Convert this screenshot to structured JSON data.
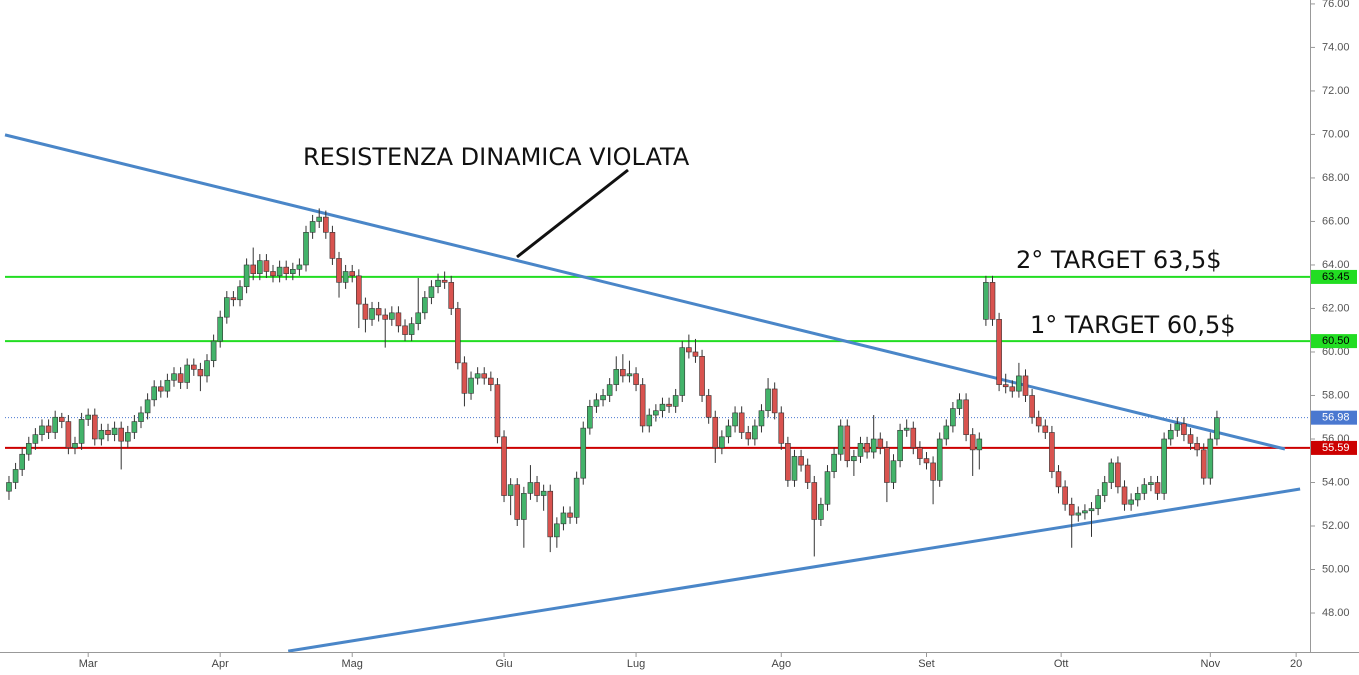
{
  "chart_data": {
    "type": "candlestick",
    "up_color": "#43b36a",
    "down_color": "#d9534f",
    "outline_color": "#333333",
    "xlim": [
      -1.36,
      197.1
    ],
    "ylim": [
      46.3,
      76.18
    ],
    "xticks": [
      {
        "value": 12,
        "label": "Mar"
      },
      {
        "value": 32,
        "label": "Apr"
      },
      {
        "value": 52,
        "label": "Mag"
      },
      {
        "value": 75,
        "label": "Giu"
      },
      {
        "value": 95,
        "label": "Lug"
      },
      {
        "value": 117,
        "label": "Ago"
      },
      {
        "value": 139,
        "label": "Set"
      },
      {
        "value": 159.4,
        "label": "Ott"
      },
      {
        "value": 182,
        "label": "Nov"
      },
      {
        "value": 195,
        "label": "20"
      }
    ],
    "yticks": [
      {
        "value": 48,
        "label": "48.00"
      },
      {
        "value": 50,
        "label": "50.00"
      },
      {
        "value": 52,
        "label": "52.00"
      },
      {
        "value": 54,
        "label": "54.00"
      },
      {
        "value": 56,
        "label": "56.00"
      },
      {
        "value": 58,
        "label": "58.00"
      },
      {
        "value": 60,
        "label": "60.00"
      },
      {
        "value": 62,
        "label": "62.00"
      },
      {
        "value": 64,
        "label": "64.00"
      },
      {
        "value": 66,
        "label": "66.00"
      },
      {
        "value": 68,
        "label": "68.00"
      },
      {
        "value": 70,
        "label": "70.00"
      },
      {
        "value": 72,
        "label": "72.00"
      },
      {
        "value": 74,
        "label": "74.00"
      },
      {
        "value": 76,
        "label": "76.00"
      }
    ],
    "levels": [
      {
        "value": 63.45,
        "label": "63.45",
        "color": "#22dd22",
        "style": "solid"
      },
      {
        "value": 60.5,
        "label": "60.50",
        "color": "#22dd22",
        "style": "solid"
      },
      {
        "value": 56.98,
        "label": "56.98",
        "color": "#4a78d0",
        "style": "dotted"
      },
      {
        "value": 55.59,
        "label": "55.59",
        "color": "#cc0000",
        "style": "solid"
      }
    ],
    "trendlines": [
      {
        "color": "#4a86c8",
        "x": [
          -0.6,
          193.3
        ],
        "y": [
          69.98,
          55.54
        ]
      },
      {
        "color": "#4a86c8",
        "x": [
          42.3,
          195.6
        ],
        "y": [
          46.25,
          53.7
        ]
      }
    ],
    "annotations": [
      "RESISTENZA DINAMICA VIOLATA",
      "2° TARGET 63,5$",
      "1° TARGET 60,5$"
    ],
    "ohlc": [
      [
        53.6,
        54.3,
        53.2,
        54.0
      ],
      [
        54.0,
        54.9,
        53.7,
        54.6
      ],
      [
        54.6,
        55.6,
        54.3,
        55.3
      ],
      [
        55.3,
        56.1,
        55.0,
        55.8
      ],
      [
        55.8,
        56.5,
        55.5,
        56.2
      ],
      [
        56.2,
        56.9,
        55.9,
        56.6
      ],
      [
        56.6,
        56.9,
        56.0,
        56.3
      ],
      [
        56.3,
        57.3,
        56.0,
        57.0
      ],
      [
        57.0,
        57.2,
        56.5,
        56.8
      ],
      [
        56.8,
        57.1,
        55.3,
        55.6
      ],
      [
        55.6,
        56.1,
        55.3,
        55.8
      ],
      [
        55.8,
        57.2,
        55.5,
        56.9
      ],
      [
        56.9,
        57.4,
        56.6,
        57.1
      ],
      [
        57.1,
        57.4,
        55.7,
        56.0
      ],
      [
        56.0,
        56.7,
        55.7,
        56.4
      ],
      [
        56.4,
        56.7,
        55.9,
        56.2
      ],
      [
        56.2,
        56.8,
        55.9,
        56.5
      ],
      [
        56.5,
        56.8,
        54.6,
        55.9
      ],
      [
        55.9,
        56.6,
        55.6,
        56.3
      ],
      [
        56.3,
        57.1,
        56.0,
        56.8
      ],
      [
        56.8,
        57.5,
        56.5,
        57.2
      ],
      [
        57.2,
        58.1,
        56.9,
        57.8
      ],
      [
        57.8,
        58.7,
        57.5,
        58.4
      ],
      [
        58.4,
        58.7,
        57.9,
        58.2
      ],
      [
        58.2,
        59.0,
        57.9,
        58.7
      ],
      [
        58.7,
        59.3,
        58.4,
        59.0
      ],
      [
        59.0,
        59.3,
        58.3,
        58.6
      ],
      [
        58.6,
        59.7,
        58.3,
        59.4
      ],
      [
        59.4,
        59.7,
        58.9,
        59.2
      ],
      [
        59.2,
        59.5,
        58.2,
        58.9
      ],
      [
        58.9,
        59.9,
        58.6,
        59.6
      ],
      [
        59.6,
        60.8,
        59.3,
        60.5
      ],
      [
        60.5,
        61.9,
        60.2,
        61.6
      ],
      [
        61.6,
        62.8,
        61.3,
        62.5
      ],
      [
        62.5,
        62.8,
        62.1,
        62.4
      ],
      [
        62.4,
        63.3,
        62.1,
        63.0
      ],
      [
        63.0,
        64.3,
        62.7,
        64.0
      ],
      [
        64.0,
        64.8,
        63.3,
        63.6
      ],
      [
        63.6,
        64.5,
        63.3,
        64.2
      ],
      [
        64.2,
        64.5,
        63.4,
        63.7
      ],
      [
        63.7,
        64.0,
        63.2,
        63.5
      ],
      [
        63.5,
        64.2,
        63.2,
        63.9
      ],
      [
        63.9,
        64.2,
        63.3,
        63.6
      ],
      [
        63.6,
        64.1,
        63.3,
        63.8
      ],
      [
        63.8,
        64.3,
        63.5,
        64.0
      ],
      [
        64.0,
        65.8,
        63.7,
        65.5
      ],
      [
        65.5,
        66.3,
        65.2,
        66.0
      ],
      [
        66.0,
        66.6,
        65.7,
        66.2
      ],
      [
        66.2,
        66.5,
        65.2,
        65.5
      ],
      [
        65.5,
        65.8,
        64.0,
        64.3
      ],
      [
        64.3,
        64.6,
        62.5,
        63.2
      ],
      [
        63.2,
        64.0,
        62.9,
        63.7
      ],
      [
        63.7,
        64.0,
        63.2,
        63.5
      ],
      [
        63.5,
        63.8,
        61.1,
        62.2
      ],
      [
        62.2,
        62.5,
        60.9,
        61.5
      ],
      [
        61.5,
        62.3,
        61.2,
        62.0
      ],
      [
        62.0,
        62.3,
        61.4,
        61.7
      ],
      [
        61.7,
        62.0,
        60.2,
        61.5
      ],
      [
        61.5,
        62.1,
        61.2,
        61.8
      ],
      [
        61.8,
        62.1,
        60.9,
        61.2
      ],
      [
        61.2,
        61.5,
        60.5,
        60.8
      ],
      [
        60.8,
        61.6,
        60.5,
        61.3
      ],
      [
        61.3,
        63.4,
        61.0,
        61.8
      ],
      [
        61.8,
        62.8,
        61.5,
        62.5
      ],
      [
        62.5,
        63.3,
        62.2,
        63.0
      ],
      [
        63.0,
        63.6,
        62.7,
        63.3
      ],
      [
        63.3,
        63.7,
        62.9,
        63.2
      ],
      [
        63.2,
        63.5,
        61.7,
        62.0
      ],
      [
        62.0,
        62.3,
        59.2,
        59.5
      ],
      [
        59.5,
        59.8,
        57.5,
        58.1
      ],
      [
        58.1,
        59.1,
        57.8,
        58.8
      ],
      [
        58.8,
        59.3,
        58.5,
        59.0
      ],
      [
        59.0,
        59.3,
        58.5,
        58.8
      ],
      [
        58.8,
        59.1,
        58.2,
        58.5
      ],
      [
        58.5,
        58.8,
        55.8,
        56.1
      ],
      [
        56.1,
        56.4,
        53.1,
        53.4
      ],
      [
        53.4,
        54.2,
        52.5,
        53.9
      ],
      [
        53.9,
        54.2,
        52.0,
        52.3
      ],
      [
        52.3,
        53.8,
        51.0,
        53.5
      ],
      [
        53.5,
        54.8,
        53.2,
        54.0
      ],
      [
        54.0,
        54.3,
        53.1,
        53.4
      ],
      [
        53.4,
        53.9,
        52.7,
        53.6
      ],
      [
        53.6,
        53.9,
        50.8,
        51.5
      ],
      [
        51.5,
        52.4,
        51.0,
        52.1
      ],
      [
        52.1,
        52.9,
        51.8,
        52.6
      ],
      [
        52.6,
        52.9,
        52.1,
        52.4
      ],
      [
        52.4,
        54.5,
        52.1,
        54.2
      ],
      [
        54.2,
        56.8,
        53.9,
        56.5
      ],
      [
        56.5,
        57.8,
        56.2,
        57.5
      ],
      [
        57.5,
        58.1,
        57.2,
        57.8
      ],
      [
        57.8,
        58.3,
        57.5,
        58.0
      ],
      [
        58.0,
        58.8,
        57.7,
        58.5
      ],
      [
        58.5,
        59.8,
        58.2,
        59.2
      ],
      [
        59.2,
        59.9,
        58.6,
        58.9
      ],
      [
        58.9,
        59.6,
        58.6,
        59.0
      ],
      [
        59.0,
        59.3,
        58.2,
        58.5
      ],
      [
        58.5,
        58.8,
        56.3,
        56.6
      ],
      [
        56.6,
        57.4,
        56.3,
        57.1
      ],
      [
        57.1,
        57.6,
        56.8,
        57.3
      ],
      [
        57.3,
        57.9,
        57.0,
        57.6
      ],
      [
        57.6,
        57.9,
        57.2,
        57.5
      ],
      [
        57.5,
        58.3,
        57.2,
        58.0
      ],
      [
        58.0,
        60.5,
        57.7,
        60.2
      ],
      [
        60.2,
        60.8,
        59.7,
        60.0
      ],
      [
        60.0,
        60.6,
        59.5,
        59.8
      ],
      [
        59.8,
        60.1,
        57.7,
        58.0
      ],
      [
        58.0,
        58.3,
        56.7,
        57.0
      ],
      [
        57.0,
        57.3,
        54.9,
        55.6
      ],
      [
        55.6,
        56.4,
        55.3,
        56.1
      ],
      [
        56.1,
        56.9,
        55.8,
        56.6
      ],
      [
        56.6,
        57.5,
        56.3,
        57.2
      ],
      [
        57.2,
        57.5,
        56.0,
        56.3
      ],
      [
        56.3,
        56.6,
        55.7,
        56.0
      ],
      [
        56.0,
        56.9,
        55.7,
        56.6
      ],
      [
        56.6,
        57.6,
        56.3,
        57.3
      ],
      [
        57.3,
        58.8,
        57.0,
        58.3
      ],
      [
        58.3,
        58.6,
        56.9,
        57.2
      ],
      [
        57.2,
        57.5,
        55.5,
        55.8
      ],
      [
        55.8,
        56.1,
        53.8,
        54.1
      ],
      [
        54.1,
        55.5,
        53.8,
        55.2
      ],
      [
        55.2,
        55.5,
        54.5,
        54.8
      ],
      [
        54.8,
        55.1,
        53.7,
        54.0
      ],
      [
        54.0,
        54.3,
        50.6,
        52.3
      ],
      [
        52.3,
        53.3,
        52.0,
        53.0
      ],
      [
        53.0,
        54.8,
        52.7,
        54.5
      ],
      [
        54.5,
        55.6,
        54.2,
        55.3
      ],
      [
        55.3,
        56.9,
        55.0,
        56.6
      ],
      [
        56.6,
        56.9,
        54.7,
        55.0
      ],
      [
        55.0,
        55.5,
        54.3,
        55.2
      ],
      [
        55.2,
        56.1,
        54.9,
        55.8
      ],
      [
        55.8,
        56.1,
        55.1,
        55.4
      ],
      [
        55.4,
        57.1,
        55.1,
        56.0
      ],
      [
        56.0,
        56.3,
        55.3,
        55.6
      ],
      [
        55.6,
        55.9,
        53.1,
        54.0
      ],
      [
        54.0,
        55.3,
        53.7,
        55.0
      ],
      [
        55.0,
        56.7,
        54.7,
        56.4
      ],
      [
        56.4,
        56.9,
        56.1,
        56.5
      ],
      [
        56.5,
        56.8,
        55.3,
        55.6
      ],
      [
        55.6,
        55.9,
        54.8,
        55.1
      ],
      [
        55.1,
        55.4,
        54.6,
        54.9
      ],
      [
        54.9,
        55.2,
        53.0,
        54.1
      ],
      [
        54.1,
        56.3,
        53.8,
        56.0
      ],
      [
        56.0,
        56.9,
        55.7,
        56.6
      ],
      [
        56.6,
        57.7,
        56.3,
        57.4
      ],
      [
        57.4,
        58.1,
        57.1,
        57.8
      ],
      [
        57.8,
        58.1,
        55.9,
        56.2
      ],
      [
        56.2,
        56.5,
        54.3,
        55.5
      ],
      [
        55.5,
        56.3,
        54.6,
        56.0
      ],
      [
        61.5,
        63.5,
        61.2,
        63.2
      ],
      [
        63.2,
        63.5,
        61.2,
        61.5
      ],
      [
        61.5,
        61.8,
        58.2,
        58.5
      ],
      [
        58.5,
        59.0,
        58.1,
        58.4
      ],
      [
        58.4,
        58.7,
        57.9,
        58.2
      ],
      [
        58.2,
        59.5,
        57.9,
        58.9
      ],
      [
        58.9,
        59.2,
        57.7,
        58.0
      ],
      [
        58.0,
        58.3,
        56.7,
        57.0
      ],
      [
        57.0,
        57.3,
        56.3,
        56.6
      ],
      [
        56.6,
        56.9,
        56.0,
        56.3
      ],
      [
        56.3,
        56.6,
        54.2,
        54.5
      ],
      [
        54.5,
        54.8,
        53.5,
        53.8
      ],
      [
        53.8,
        54.1,
        52.7,
        53.0
      ],
      [
        53.0,
        53.3,
        51.0,
        52.5
      ],
      [
        52.5,
        52.9,
        52.2,
        52.6
      ],
      [
        52.6,
        53.0,
        52.3,
        52.7
      ],
      [
        52.7,
        53.1,
        51.5,
        52.8
      ],
      [
        52.8,
        53.7,
        52.5,
        53.4
      ],
      [
        53.4,
        54.3,
        53.1,
        54.0
      ],
      [
        54.0,
        55.1,
        53.7,
        54.9
      ],
      [
        54.9,
        55.2,
        53.5,
        53.8
      ],
      [
        53.8,
        54.1,
        52.7,
        53.0
      ],
      [
        53.0,
        53.5,
        52.7,
        53.2
      ],
      [
        53.2,
        53.8,
        52.9,
        53.5
      ],
      [
        53.5,
        54.2,
        53.2,
        53.9
      ],
      [
        53.9,
        54.3,
        53.6,
        54.0
      ],
      [
        54.0,
        54.3,
        53.2,
        53.5
      ],
      [
        53.5,
        56.3,
        53.2,
        56.0
      ],
      [
        56.0,
        56.7,
        55.7,
        56.4
      ],
      [
        56.4,
        57.0,
        56.1,
        56.7
      ],
      [
        56.7,
        57.0,
        55.9,
        56.2
      ],
      [
        56.2,
        56.5,
        55.5,
        55.8
      ],
      [
        55.8,
        56.1,
        55.2,
        55.5
      ],
      [
        55.5,
        55.8,
        53.9,
        54.2
      ],
      [
        54.2,
        56.3,
        53.9,
        56.0
      ],
      [
        56.0,
        57.3,
        55.7,
        56.98
      ]
    ]
  }
}
